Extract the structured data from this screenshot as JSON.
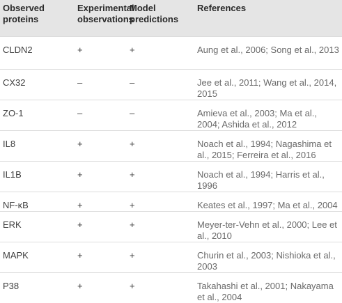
{
  "table": {
    "header": [
      "Observed proteins",
      "Experimental observations",
      "Model predictions",
      "References"
    ],
    "rows": [
      [
        "CLDN2",
        "+",
        "+",
        "Aung et al., 2006; Song et al., 2013"
      ],
      [
        "CX32",
        "–",
        "–",
        "Jee et al., 2011; Wang et al., 2014, 2015"
      ],
      [
        "ZO-1",
        "–",
        "–",
        "Amieva et al., 2003; Ma et al., 2004; Ashida et al., 2012"
      ],
      [
        "IL8",
        "+",
        "+",
        "Noach et al., 1994; Nagashima et al., 2015; Ferreira et al., 2016"
      ],
      [
        "IL1B",
        "+",
        "+",
        "Noach et al., 1994; Harris et al., 1996"
      ],
      [
        "NF-κB",
        "+",
        "+",
        "Keates et al., 1997; Ma et al., 2004"
      ],
      [
        "ERK",
        "+",
        "+",
        "Meyer-ter-Vehn et al., 2000; Lee et al., 2010"
      ],
      [
        "MAPK",
        "+",
        "+",
        "Churin et al., 2003; Nishioka et al., 2003"
      ],
      [
        "P38",
        "+",
        "+",
        "Takahashi et al., 2001; Nakayama et al., 2004"
      ]
    ]
  }
}
